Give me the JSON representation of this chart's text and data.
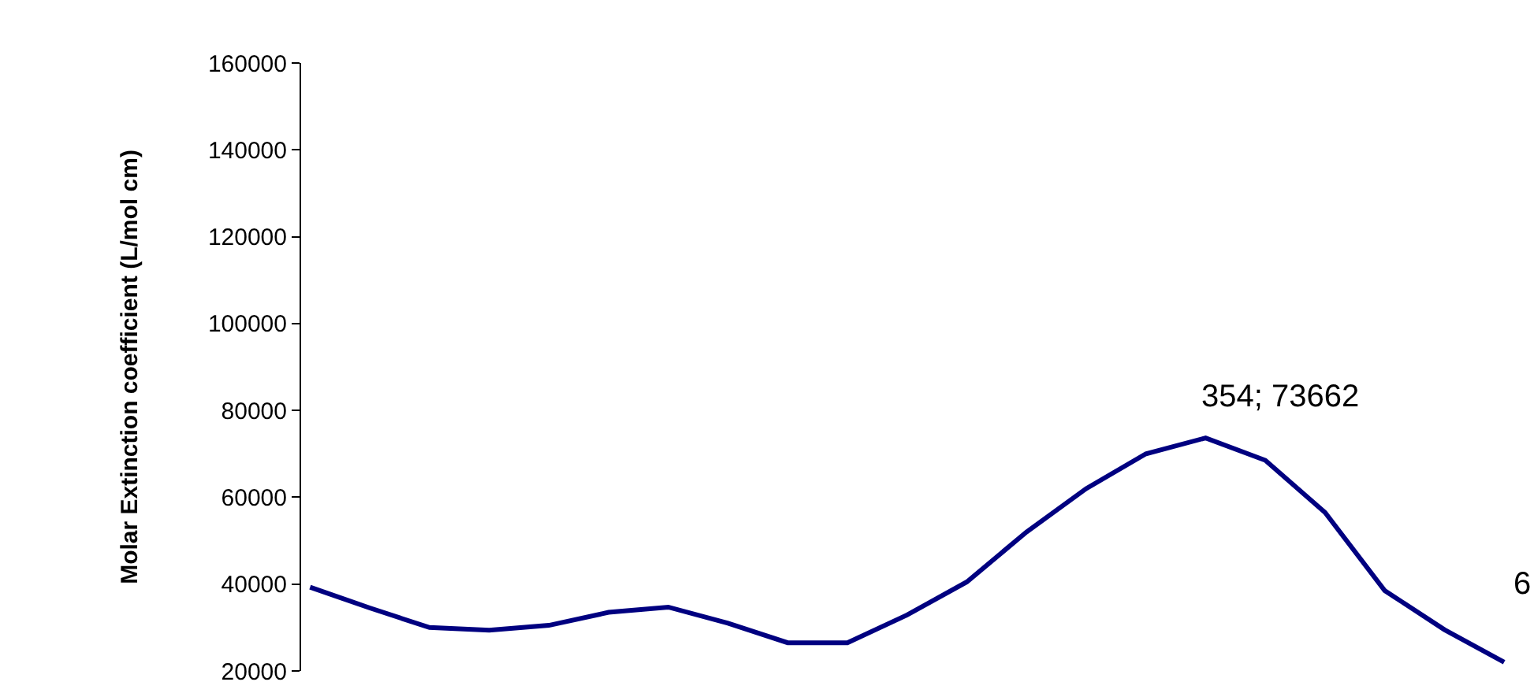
{
  "chart_data": {
    "type": "line",
    "ylabel": "Molar Extinction coefficient (L/mol cm)",
    "categories": [
      null,
      null,
      null,
      null,
      null,
      null,
      null,
      null,
      null,
      null,
      null,
      null,
      null,
      null,
      null,
      null,
      null,
      null,
      null,
      null,
      null
    ],
    "series": [
      {
        "color": "#000080",
        "values": [
          39300,
          34500,
          30000,
          29400,
          30500,
          33500,
          34700,
          31000,
          26500,
          26500,
          32900,
          40500,
          52000,
          62000,
          70000,
          73662,
          68500,
          56500,
          38500,
          29500,
          22000
        ]
      }
    ],
    "ylim": [
      20000,
      160000
    ],
    "yticks": [
      20000,
      40000,
      60000,
      80000,
      100000,
      120000,
      140000,
      160000
    ],
    "tick_labels": "y",
    "marker": "none",
    "line_style": "solid",
    "annotations": [
      "354; 73662",
      "6"
    ]
  }
}
